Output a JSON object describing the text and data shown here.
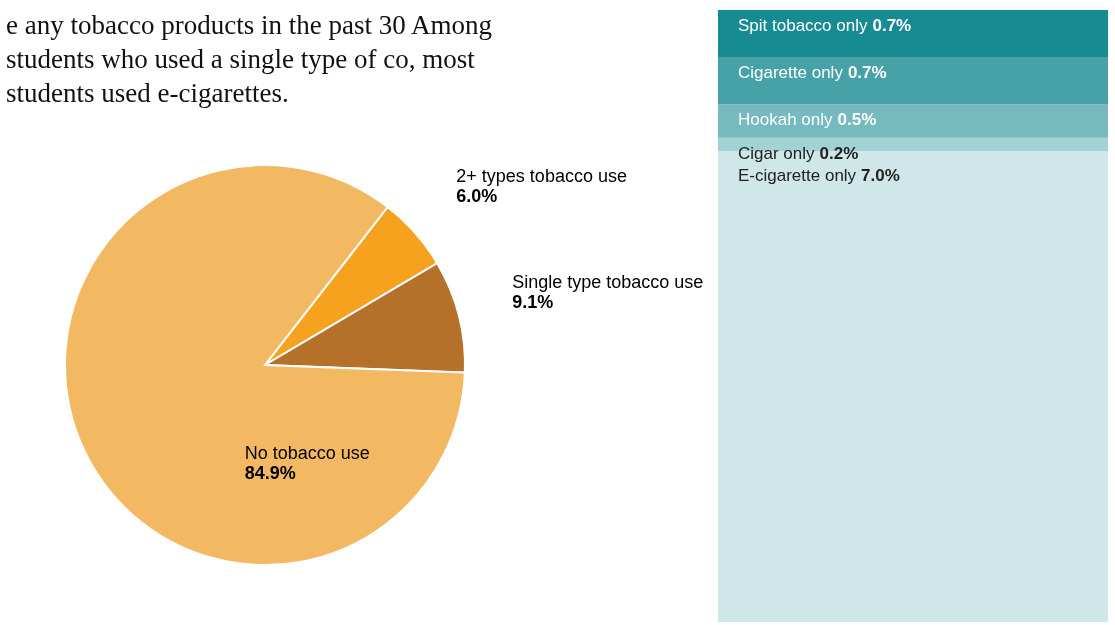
{
  "chart_data": [
    {
      "type": "pie",
      "title": "e any tobacco products in the past 30 Among students who used a single type of co, most students used e-cigarettes.",
      "categories": [
        "2+ types tobacco use",
        "Single type tobacco use",
        "No tobacco use"
      ],
      "values": [
        6.0,
        9.1,
        84.9
      ],
      "value_labels": [
        "6.0%",
        "9.1%",
        "84.9%"
      ],
      "colors": [
        "#f7a21e",
        "#b5712a",
        "#f3b862"
      ],
      "legend": false
    },
    {
      "type": "bar",
      "stacked": true,
      "categories": [
        null
      ],
      "legend": false,
      "series": [
        {
          "name": "E-cigarette only",
          "color": "#d0e7e9",
          "values": [
            7.0
          ],
          "value_labels": [
            "7.0%"
          ]
        },
        {
          "name": "Cigar only",
          "color": "#a2d2d4",
          "values": [
            0.2
          ],
          "value_labels": [
            "0.2%"
          ]
        },
        {
          "name": "Hookah only",
          "color": "#76b9be",
          "values": [
            0.5
          ],
          "value_labels": [
            "0.5%"
          ]
        },
        {
          "name": "Cigarette only",
          "color": "#47a2a8",
          "values": [
            0.7
          ],
          "value_labels": [
            "0.7%"
          ]
        },
        {
          "name": "Spit tobacco only",
          "color": "#168b91",
          "values": [
            0.7
          ],
          "value_labels": [
            "0.7%"
          ]
        }
      ]
    }
  ]
}
